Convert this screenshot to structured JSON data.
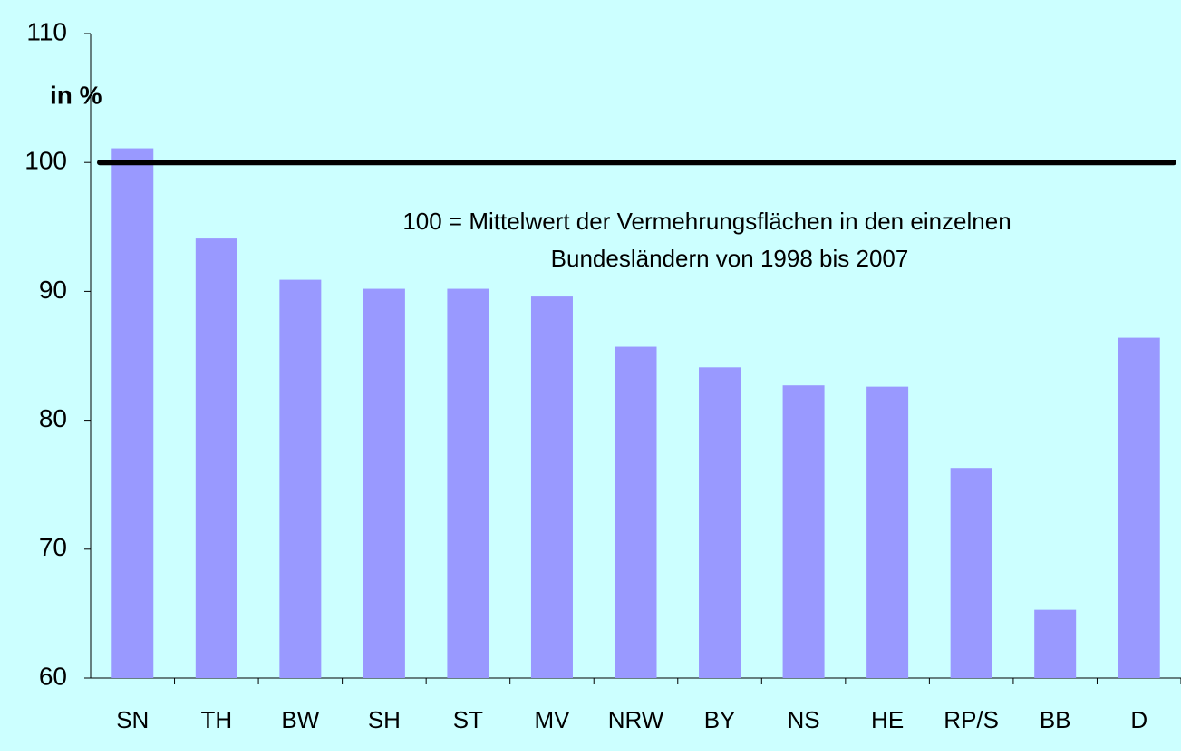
{
  "chart_data": {
    "type": "bar",
    "y_label": "in %",
    "annotation": [
      "100 = Mittelwert der Vermehrungsflächen in den einzelnen",
      "Bundesländern von 1998 bis 2007"
    ],
    "categories": [
      "SN",
      "TH",
      "BW",
      "SH",
      "ST",
      "MV",
      "NRW",
      "BY",
      "NS",
      "HE",
      "RP/S",
      "BB",
      "D"
    ],
    "values": [
      101.1,
      94.1,
      90.9,
      90.2,
      90.2,
      89.6,
      85.7,
      84.1,
      82.7,
      82.6,
      76.3,
      65.3,
      86.4
    ],
    "color": "#9999ff",
    "reference_line": 100,
    "reference_color": "#000000",
    "background": "#ccffff",
    "ylim": [
      60,
      110
    ],
    "yticks": [
      60,
      70,
      80,
      90,
      100,
      110
    ],
    "grid": false
  }
}
